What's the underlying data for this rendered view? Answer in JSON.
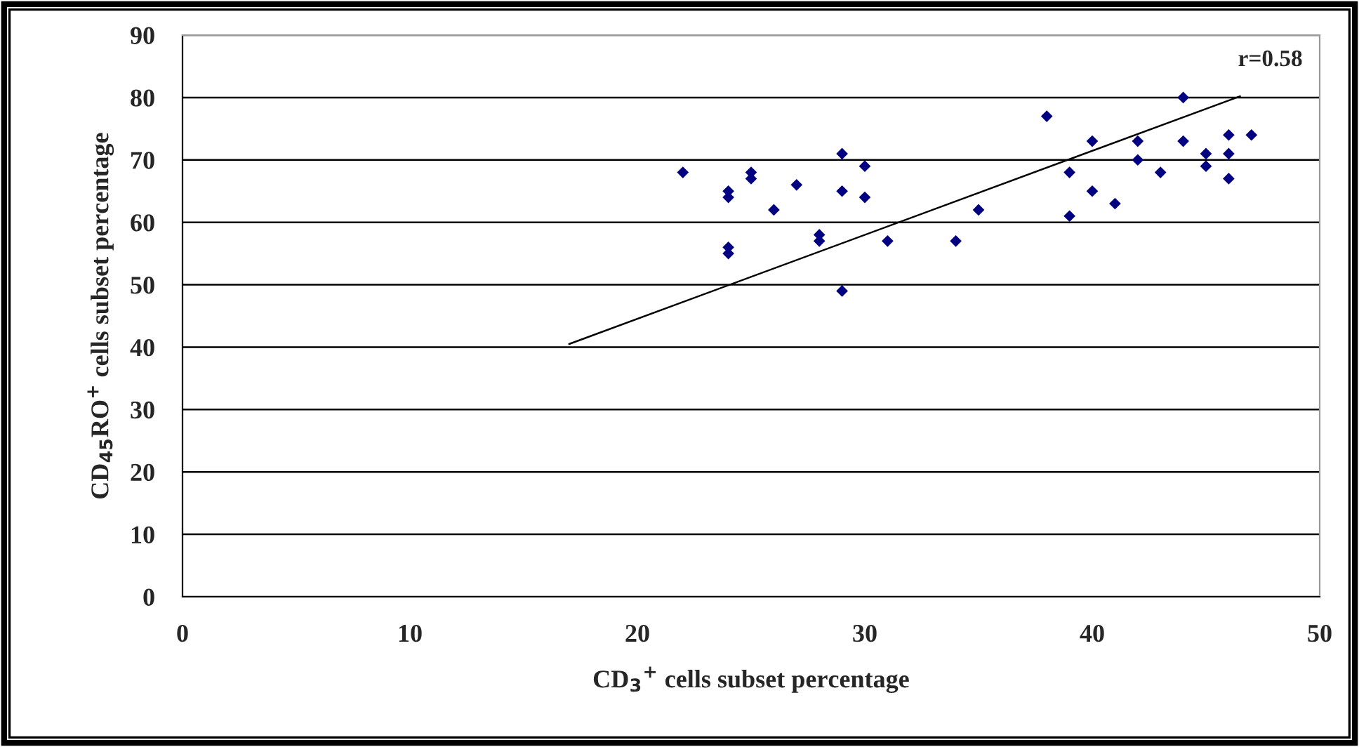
{
  "chart_data": {
    "type": "scatter",
    "xlabel": "CD$_{3}$$^{+}$ cells subset percentage",
    "ylabel": "CD$_{45}$RO$^{+}$ cells subset percentage",
    "annotations": [
      "r=0.58"
    ],
    "series": [
      {
        "color": "#000080",
        "marker": "diamond",
        "x": [
          22,
          24,
          24,
          24,
          24,
          25,
          25,
          26,
          27,
          28,
          28,
          29,
          29,
          29,
          30,
          30,
          31,
          34,
          35,
          38,
          39,
          39,
          40,
          40,
          41,
          42,
          42,
          43,
          44,
          44,
          45,
          45,
          46,
          46,
          46,
          47
        ],
        "values": [
          68,
          65,
          64,
          56,
          55,
          68,
          67,
          62,
          66,
          58,
          57,
          71,
          65,
          49,
          69,
          64,
          57,
          57,
          62,
          77,
          68,
          61,
          73,
          65,
          63,
          73,
          70,
          68,
          80,
          73,
          71,
          69,
          74,
          71,
          67,
          74
        ]
      },
      {
        "type": "line",
        "color": "#000000",
        "marker": "none",
        "line_style": "solid",
        "x": [
          17,
          46.5
        ],
        "values": [
          40.5,
          80.2
        ]
      }
    ],
    "xlim": [
      0,
      50
    ],
    "xticks": [
      0,
      10,
      20,
      30,
      40,
      50
    ],
    "ylim": [
      0,
      90
    ],
    "yticks": [
      0,
      10,
      20,
      30,
      40,
      50,
      60,
      70,
      80,
      90
    ],
    "grid": "y",
    "legend": false
  }
}
